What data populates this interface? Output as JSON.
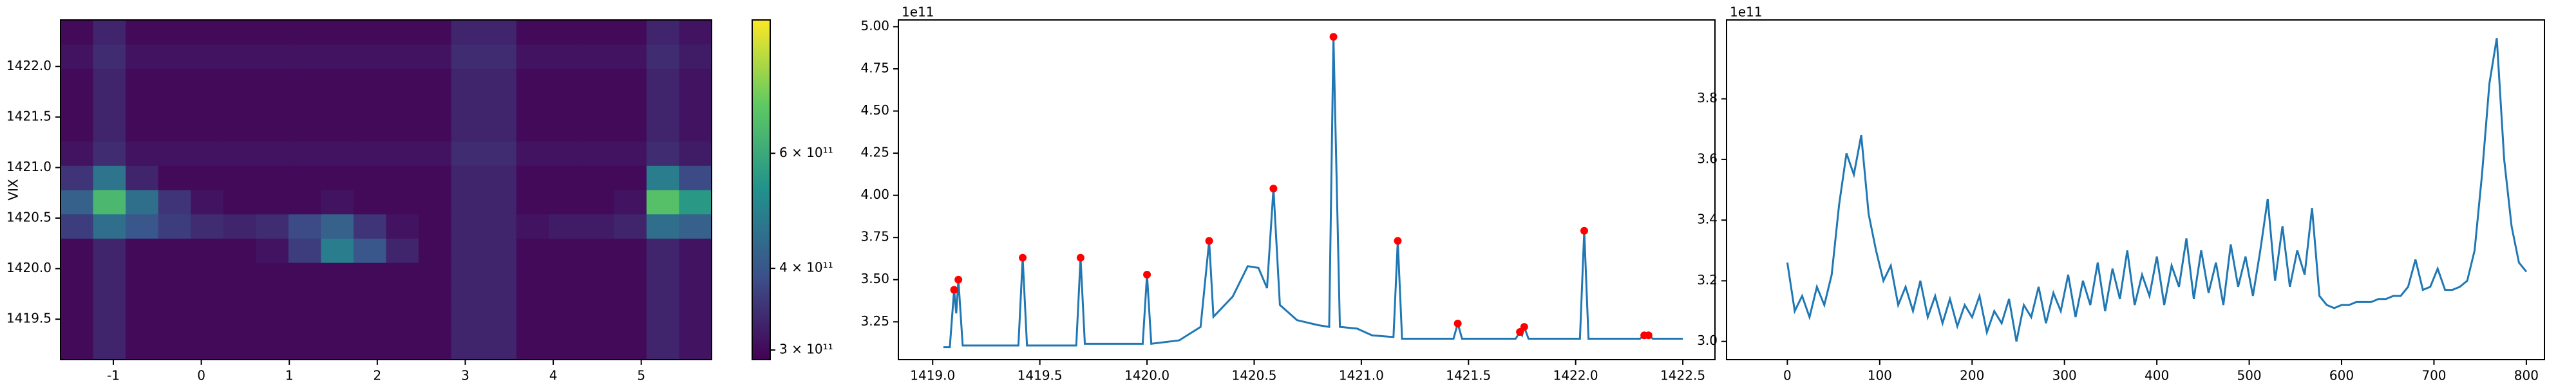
{
  "chart_data": [
    {
      "type": "heatmap",
      "ylabel": "VIX",
      "xlim": [
        -1.6,
        5.8
      ],
      "ylim": [
        1419.1,
        1422.46
      ],
      "xticks": [
        -1,
        0,
        1,
        2,
        3,
        4,
        5
      ],
      "yticks": [
        1419.5,
        {
          "value": 1420.0,
          "label": "1420.0"
        },
        1420.5,
        {
          "value": 1421.0,
          "label": "1421.0"
        },
        1421.5,
        {
          "value": 1422.0,
          "label": "1422.0"
        }
      ],
      "x_edges": [
        -1.6,
        -1.23,
        -0.86,
        -0.49,
        -0.12,
        0.25,
        0.62,
        0.99,
        1.36,
        1.73,
        2.1,
        2.47,
        2.84,
        3.21,
        3.58,
        3.95,
        4.32,
        4.69,
        5.06,
        5.43,
        5.8
      ],
      "y_edges": [
        1419.1,
        1419.34,
        1419.58,
        1419.82,
        1420.06,
        1420.3,
        1420.54,
        1420.78,
        1421.02,
        1421.26,
        1421.5,
        1421.74,
        1421.98,
        1422.22,
        1422.46
      ],
      "cmap": "viridis",
      "colorbar": {
        "log": true,
        "lim": [
          290000000000.0,
          960000000000.0
        ],
        "ticks": [
          {
            "value": 300000000000.0,
            "label": "3 × 10¹¹"
          },
          {
            "value": 400000000000.0,
            "label": "4 × 10¹¹"
          },
          {
            "value": 600000000000.0,
            "label": "6 × 10¹¹"
          }
        ]
      },
      "z": [
        [
          300000000000.0,
          330000000000.0,
          300000000000.0,
          300000000000.0,
          300000000000.0,
          300000000000.0,
          300000000000.0,
          300000000000.0,
          300000000000.0,
          300000000000.0,
          300000000000.0,
          300000000000.0,
          330000000000.0,
          330000000000.0,
          300000000000.0,
          300000000000.0,
          300000000000.0,
          300000000000.0,
          330000000000.0,
          310000000000.0
        ],
        [
          300000000000.0,
          330000000000.0,
          300000000000.0,
          300000000000.0,
          300000000000.0,
          300000000000.0,
          300000000000.0,
          300000000000.0,
          300000000000.0,
          300000000000.0,
          300000000000.0,
          300000000000.0,
          330000000000.0,
          330000000000.0,
          300000000000.0,
          300000000000.0,
          300000000000.0,
          300000000000.0,
          330000000000.0,
          310000000000.0
        ],
        [
          300000000000.0,
          330000000000.0,
          300000000000.0,
          300000000000.0,
          300000000000.0,
          300000000000.0,
          300000000000.0,
          300000000000.0,
          300000000000.0,
          300000000000.0,
          300000000000.0,
          300000000000.0,
          330000000000.0,
          330000000000.0,
          300000000000.0,
          300000000000.0,
          300000000000.0,
          300000000000.0,
          330000000000.0,
          310000000000.0
        ],
        [
          300000000000.0,
          330000000000.0,
          300000000000.0,
          300000000000.0,
          300000000000.0,
          300000000000.0,
          300000000000.0,
          300000000000.0,
          300000000000.0,
          300000000000.0,
          300000000000.0,
          300000000000.0,
          330000000000.0,
          330000000000.0,
          300000000000.0,
          300000000000.0,
          300000000000.0,
          300000000000.0,
          330000000000.0,
          310000000000.0
        ],
        [
          300000000000.0,
          330000000000.0,
          300000000000.0,
          300000000000.0,
          300000000000.0,
          300000000000.0,
          310000000000.0,
          360000000000.0,
          480000000000.0,
          400000000000.0,
          330000000000.0,
          300000000000.0,
          330000000000.0,
          330000000000.0,
          300000000000.0,
          300000000000.0,
          300000000000.0,
          300000000000.0,
          330000000000.0,
          310000000000.0
        ],
        [
          360000000000.0,
          450000000000.0,
          400000000000.0,
          360000000000.0,
          340000000000.0,
          330000000000.0,
          340000000000.0,
          380000000000.0,
          420000000000.0,
          350000000000.0,
          310000000000.0,
          300000000000.0,
          330000000000.0,
          330000000000.0,
          310000000000.0,
          320000000000.0,
          320000000000.0,
          330000000000.0,
          450000000000.0,
          420000000000.0
        ],
        [
          420000000000.0,
          650000000000.0,
          450000000000.0,
          350000000000.0,
          310000000000.0,
          300000000000.0,
          300000000000.0,
          300000000000.0,
          310000000000.0,
          300000000000.0,
          300000000000.0,
          300000000000.0,
          330000000000.0,
          330000000000.0,
          300000000000.0,
          300000000000.0,
          300000000000.0,
          310000000000.0,
          680000000000.0,
          550000000000.0
        ],
        [
          350000000000.0,
          460000000000.0,
          330000000000.0,
          300000000000.0,
          300000000000.0,
          300000000000.0,
          300000000000.0,
          300000000000.0,
          300000000000.0,
          300000000000.0,
          300000000000.0,
          300000000000.0,
          330000000000.0,
          330000000000.0,
          300000000000.0,
          300000000000.0,
          300000000000.0,
          300000000000.0,
          480000000000.0,
          380000000000.0
        ],
        [
          310000000000.0,
          340000000000.0,
          310000000000.0,
          310000000000.0,
          310000000000.0,
          310000000000.0,
          310000000000.0,
          310000000000.0,
          310000000000.0,
          310000000000.0,
          310000000000.0,
          310000000000.0,
          340000000000.0,
          340000000000.0,
          310000000000.0,
          310000000000.0,
          310000000000.0,
          310000000000.0,
          340000000000.0,
          320000000000.0
        ],
        [
          300000000000.0,
          330000000000.0,
          300000000000.0,
          300000000000.0,
          300000000000.0,
          300000000000.0,
          300000000000.0,
          300000000000.0,
          300000000000.0,
          300000000000.0,
          300000000000.0,
          300000000000.0,
          330000000000.0,
          330000000000.0,
          300000000000.0,
          300000000000.0,
          300000000000.0,
          300000000000.0,
          330000000000.0,
          310000000000.0
        ],
        [
          300000000000.0,
          330000000000.0,
          300000000000.0,
          300000000000.0,
          300000000000.0,
          300000000000.0,
          300000000000.0,
          300000000000.0,
          300000000000.0,
          300000000000.0,
          300000000000.0,
          300000000000.0,
          330000000000.0,
          330000000000.0,
          300000000000.0,
          300000000000.0,
          300000000000.0,
          300000000000.0,
          330000000000.0,
          310000000000.0
        ],
        [
          300000000000.0,
          330000000000.0,
          300000000000.0,
          300000000000.0,
          300000000000.0,
          300000000000.0,
          300000000000.0,
          300000000000.0,
          300000000000.0,
          300000000000.0,
          300000000000.0,
          300000000000.0,
          330000000000.0,
          330000000000.0,
          300000000000.0,
          300000000000.0,
          300000000000.0,
          300000000000.0,
          330000000000.0,
          310000000000.0
        ],
        [
          310000000000.0,
          340000000000.0,
          310000000000.0,
          310000000000.0,
          310000000000.0,
          310000000000.0,
          310000000000.0,
          310000000000.0,
          310000000000.0,
          310000000000.0,
          310000000000.0,
          310000000000.0,
          340000000000.0,
          340000000000.0,
          310000000000.0,
          310000000000.0,
          310000000000.0,
          310000000000.0,
          340000000000.0,
          320000000000.0
        ],
        [
          300000000000.0,
          330000000000.0,
          300000000000.0,
          300000000000.0,
          300000000000.0,
          300000000000.0,
          300000000000.0,
          300000000000.0,
          300000000000.0,
          300000000000.0,
          300000000000.0,
          300000000000.0,
          330000000000.0,
          330000000000.0,
          300000000000.0,
          300000000000.0,
          300000000000.0,
          300000000000.0,
          330000000000.0,
          310000000000.0
        ]
      ]
    },
    {
      "type": "line",
      "offset_label": "1e11",
      "xlim": [
        1418.84,
        1422.65
      ],
      "ylim": [
        3.026,
        5.04
      ],
      "xticks": [
        {
          "value": 1419.0,
          "label": "1419.0"
        },
        1419.5,
        {
          "value": 1420.0,
          "label": "1420.0"
        },
        1420.5,
        {
          "value": 1421.0,
          "label": "1421.0"
        },
        1421.5,
        {
          "value": 1422.0,
          "label": "1422.0"
        },
        1422.5
      ],
      "yticks": [
        3.25,
        {
          "value": 3.5,
          "label": "3.50"
        },
        3.75,
        {
          "value": 4.0,
          "label": "4.00"
        },
        4.25,
        {
          "value": 4.5,
          "label": "4.50"
        },
        4.75,
        {
          "value": 5.0,
          "label": "5.00"
        }
      ],
      "x": [
        1419.05,
        1419.08,
        1419.1,
        1419.11,
        1419.12,
        1419.14,
        1419.4,
        1419.42,
        1419.44,
        1419.67,
        1419.69,
        1419.71,
        1419.98,
        1420.0,
        1420.02,
        1420.15,
        1420.25,
        1420.29,
        1420.31,
        1420.4,
        1420.47,
        1420.52,
        1420.56,
        1420.59,
        1420.62,
        1420.7,
        1420.8,
        1420.85,
        1420.87,
        1420.9,
        1420.98,
        1421.05,
        1421.15,
        1421.17,
        1421.19,
        1421.43,
        1421.45,
        1421.47,
        1421.72,
        1421.74,
        1421.75,
        1421.76,
        1421.78,
        1422.02,
        1422.04,
        1422.06,
        1422.3,
        1422.32,
        1422.34,
        1422.36,
        1422.5
      ],
      "series": [
        {
          "color": "#1f77b4",
          "values": [
            3.1,
            3.1,
            3.44,
            3.3,
            3.5,
            3.11,
            3.11,
            3.63,
            3.11,
            3.11,
            3.63,
            3.12,
            3.12,
            3.53,
            3.12,
            3.14,
            3.22,
            3.73,
            3.28,
            3.4,
            3.58,
            3.57,
            3.45,
            4.04,
            3.35,
            3.26,
            3.23,
            3.22,
            4.94,
            3.22,
            3.21,
            3.17,
            3.16,
            3.73,
            3.15,
            3.15,
            3.24,
            3.15,
            3.15,
            3.19,
            3.17,
            3.22,
            3.15,
            3.15,
            3.79,
            3.15,
            3.15,
            3.17,
            3.17,
            3.15,
            3.15
          ]
        }
      ],
      "peaks": {
        "color": "#ff0000",
        "x": [
          1419.1,
          1419.12,
          1419.42,
          1419.69,
          1420.0,
          1420.29,
          1420.59,
          1420.87,
          1421.17,
          1421.45,
          1421.74,
          1421.76,
          1422.04,
          1422.32,
          1422.34
        ],
        "values": [
          3.44,
          3.5,
          3.63,
          3.63,
          3.53,
          3.73,
          4.04,
          4.94,
          3.73,
          3.24,
          3.19,
          3.22,
          3.79,
          3.17,
          3.17
        ]
      }
    },
    {
      "type": "line",
      "offset_label": "1e11",
      "xlim": [
        -65.8,
        819.6
      ],
      "ylim": [
        2.94,
        4.06
      ],
      "xticks": [
        0,
        100,
        200,
        300,
        400,
        500,
        600,
        700,
        800
      ],
      "yticks": [
        {
          "value": 3.0,
          "label": "3.0"
        },
        3.2,
        3.4,
        3.6,
        3.8
      ],
      "x": [
        0,
        8,
        16,
        24,
        32,
        40,
        48,
        56,
        64,
        72,
        80,
        88,
        96,
        104,
        112,
        120,
        128,
        136,
        144,
        152,
        160,
        168,
        176,
        184,
        192,
        200,
        208,
        216,
        224,
        232,
        240,
        248,
        256,
        264,
        272,
        280,
        288,
        296,
        304,
        312,
        320,
        328,
        336,
        344,
        352,
        360,
        368,
        376,
        384,
        392,
        400,
        408,
        416,
        424,
        432,
        440,
        448,
        456,
        464,
        472,
        480,
        488,
        496,
        504,
        512,
        520,
        528,
        536,
        544,
        552,
        560,
        568,
        576,
        584,
        592,
        600,
        608,
        616,
        624,
        632,
        640,
        648,
        656,
        664,
        672,
        680,
        688,
        696,
        704,
        712,
        720,
        728,
        736,
        744,
        752,
        760,
        768,
        776,
        784,
        792,
        800
      ],
      "series": [
        {
          "color": "#1f77b4",
          "values": [
            3.26,
            3.1,
            3.15,
            3.08,
            3.18,
            3.12,
            3.22,
            3.45,
            3.62,
            3.55,
            3.68,
            3.42,
            3.3,
            3.2,
            3.25,
            3.12,
            3.18,
            3.1,
            3.2,
            3.08,
            3.15,
            3.06,
            3.14,
            3.05,
            3.12,
            3.08,
            3.15,
            3.03,
            3.1,
            3.06,
            3.14,
            3.0,
            3.12,
            3.08,
            3.18,
            3.06,
            3.16,
            3.1,
            3.22,
            3.08,
            3.2,
            3.12,
            3.26,
            3.1,
            3.24,
            3.14,
            3.3,
            3.12,
            3.22,
            3.15,
            3.28,
            3.12,
            3.25,
            3.18,
            3.34,
            3.14,
            3.3,
            3.16,
            3.26,
            3.12,
            3.32,
            3.18,
            3.28,
            3.15,
            3.3,
            3.47,
            3.2,
            3.38,
            3.18,
            3.3,
            3.22,
            3.44,
            3.15,
            3.12,
            3.11,
            3.12,
            3.12,
            3.13,
            3.13,
            3.13,
            3.14,
            3.14,
            3.15,
            3.15,
            3.18,
            3.27,
            3.17,
            3.18,
            3.24,
            3.17,
            3.17,
            3.18,
            3.2,
            3.3,
            3.55,
            3.85,
            4.0,
            3.6,
            3.38,
            3.26,
            3.23
          ]
        }
      ]
    }
  ]
}
